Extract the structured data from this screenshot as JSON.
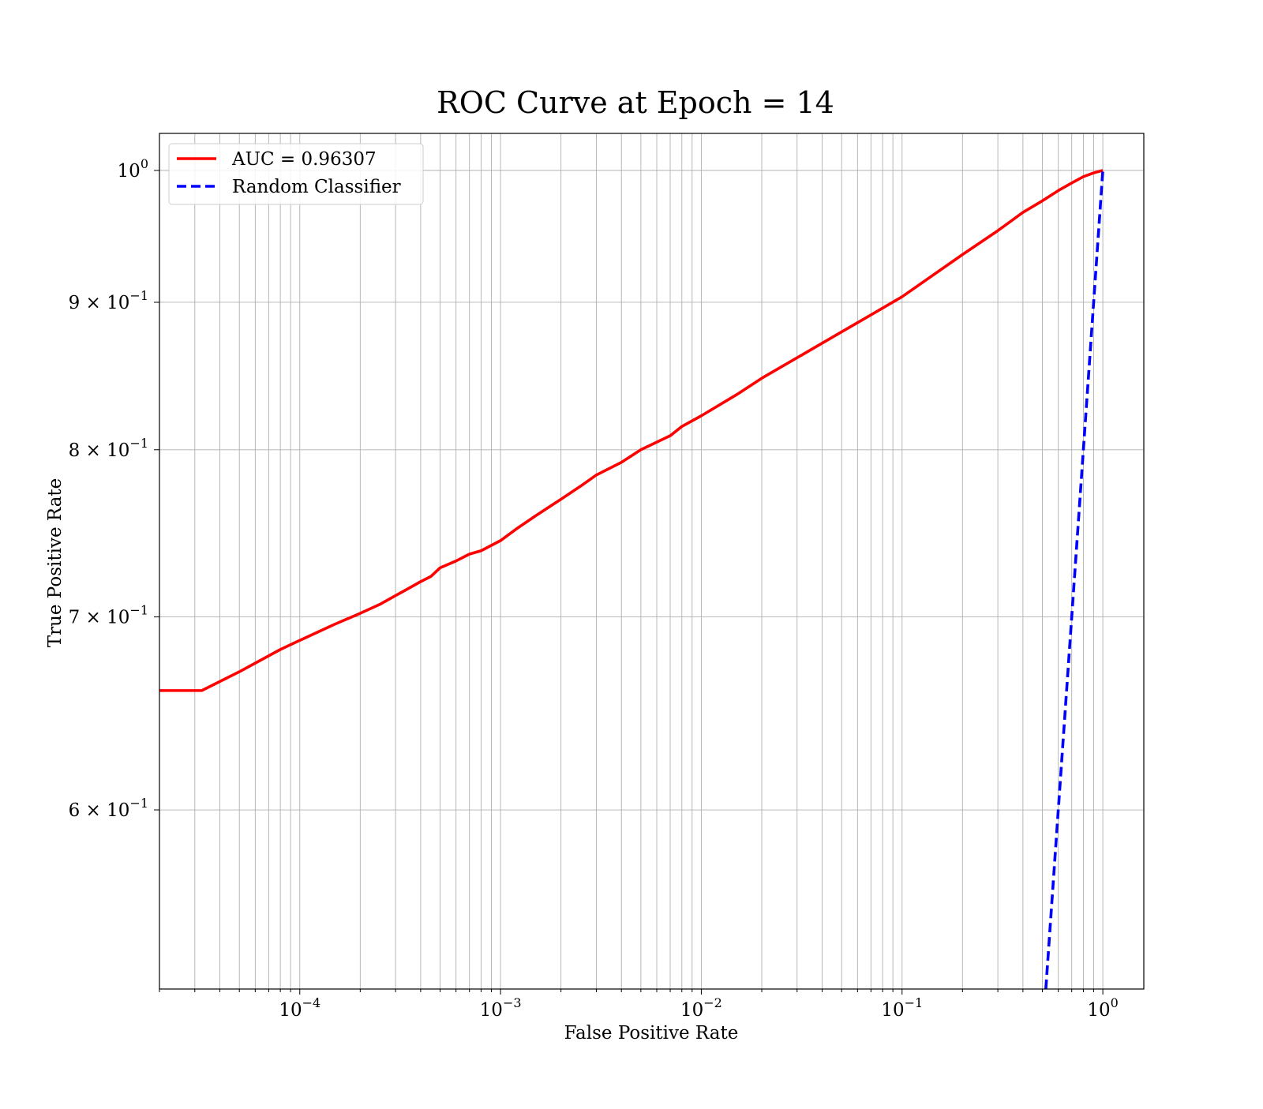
{
  "chart_data": {
    "type": "line",
    "title": "ROC Curve at Epoch = 14",
    "xlabel": "False Positive Rate",
    "ylabel": "True Positive Rate",
    "xscale": "log",
    "yscale": "log",
    "xlim": [
      2e-05,
      1.6
    ],
    "ylim": [
      0.52,
      1.03
    ],
    "grid": "major and minor, both axes",
    "legend_position": "upper left",
    "x_tick_labels": [
      {
        "value": 0.0001,
        "base": "10",
        "exp": "−4"
      },
      {
        "value": 0.001,
        "base": "10",
        "exp": "−3"
      },
      {
        "value": 0.01,
        "base": "10",
        "exp": "−2"
      },
      {
        "value": 0.1,
        "base": "10",
        "exp": "−1"
      },
      {
        "value": 1,
        "base": "10",
        "exp": "0"
      }
    ],
    "y_tick_labels": [
      {
        "value": 0.6,
        "base": "6 × 10",
        "exp": "−1"
      },
      {
        "value": 0.7,
        "base": "7 × 10",
        "exp": "−1"
      },
      {
        "value": 0.8,
        "base": "8 × 10",
        "exp": "−1"
      },
      {
        "value": 0.9,
        "base": "9 × 10",
        "exp": "−1"
      },
      {
        "value": 1,
        "base": "10",
        "exp": "0"
      }
    ],
    "series": [
      {
        "name": "AUC = 0.96307",
        "color": "#ff0000",
        "style": "solid",
        "x": [
          2e-05,
          3.25e-05,
          5e-05,
          8e-05,
          0.0001,
          0.00015,
          0.0002,
          0.00025,
          0.0003,
          0.0004,
          0.00045,
          0.0005,
          0.0006,
          0.0007,
          0.0008,
          0.001,
          0.0012,
          0.0015,
          0.002,
          0.0025,
          0.003,
          0.004,
          0.005,
          0.007,
          0.008,
          0.01,
          0.015,
          0.02,
          0.03,
          0.05,
          0.07,
          0.1,
          0.2,
          0.3,
          0.4,
          0.5,
          0.6,
          0.7,
          0.8,
          0.9,
          1.0
        ],
        "y": [
          0.66,
          0.66,
          0.67,
          0.682,
          0.687,
          0.696,
          0.702,
          0.707,
          0.712,
          0.72,
          0.723,
          0.728,
          0.732,
          0.736,
          0.738,
          0.744,
          0.751,
          0.759,
          0.769,
          0.777,
          0.784,
          0.792,
          0.8,
          0.809,
          0.815,
          0.822,
          0.836,
          0.847,
          0.861,
          0.879,
          0.891,
          0.904,
          0.935,
          0.953,
          0.967,
          0.976,
          0.984,
          0.99,
          0.995,
          0.998,
          1.0
        ]
      },
      {
        "name": "Random Classifier",
        "color": "#0000ff",
        "style": "dashed",
        "x": [
          0.52,
          1.0
        ],
        "y": [
          0.52,
          1.0
        ]
      }
    ]
  }
}
